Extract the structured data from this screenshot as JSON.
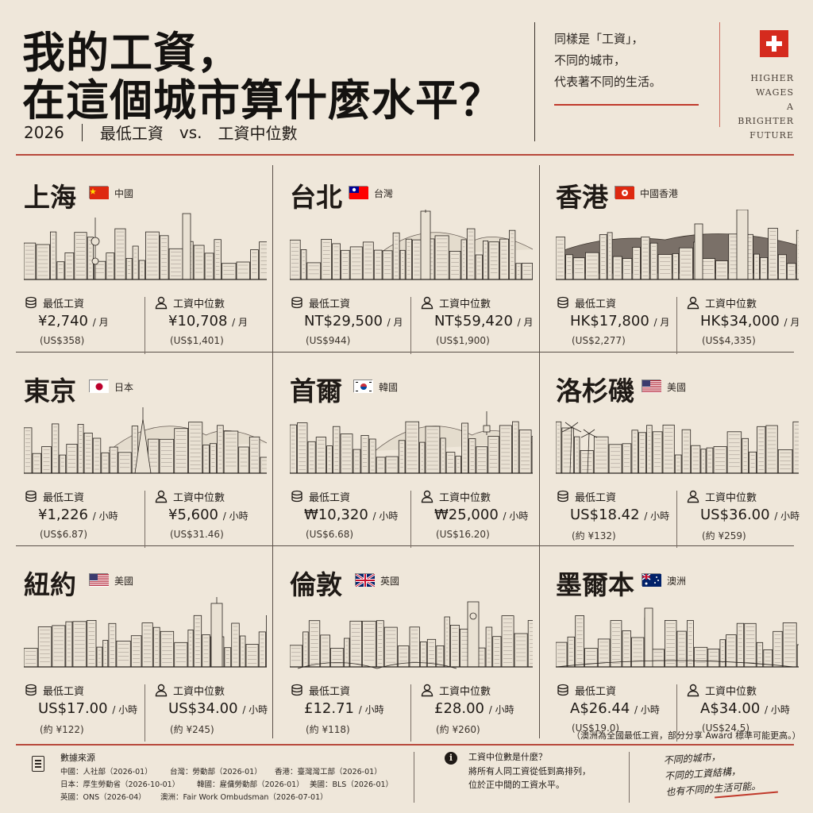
{
  "header": {
    "title_line1": "我的工資，",
    "title_line2": "在這個城市算什麼水平？",
    "year": "2026",
    "compare_left": "最低工資",
    "vs": "vs.",
    "compare_right": "工資中位數",
    "quote": [
      "同樣是「工資」，",
      "不同的城市，",
      "代表著不同的生活。"
    ],
    "brand": [
      "HIGHER",
      "WAGES",
      "A BRIGHTER",
      "FUTURE"
    ]
  },
  "cities": [
    {
      "name": "上海",
      "country": "中國",
      "flag": "cn",
      "min_label": "最低工資",
      "min_value": "¥2,740",
      "min_unit": "/ 月",
      "min_sub": "(US$358)",
      "med_label": "工資中位數",
      "med_value": "¥10,708",
      "med_unit": "/ 月",
      "med_sub": "(US$1,401)"
    },
    {
      "name": "台北",
      "country": "台灣",
      "flag": "tw",
      "min_label": "最低工資",
      "min_value": "NT$29,500",
      "min_unit": "/ 月",
      "min_sub": "(US$944)",
      "med_label": "工資中位數",
      "med_value": "NT$59,420",
      "med_unit": "/ 月",
      "med_sub": "(US$1,900)"
    },
    {
      "name": "香港",
      "country": "中國香港",
      "flag": "hk",
      "min_label": "最低工資",
      "min_value": "HK$17,800",
      "min_unit": "/ 月",
      "min_sub": "(US$2,277)",
      "med_label": "工資中位數",
      "med_value": "HK$34,000",
      "med_unit": "/ 月",
      "med_sub": "(US$4,335)"
    },
    {
      "name": "東京",
      "country": "日本",
      "flag": "jp",
      "min_label": "最低工資",
      "min_value": "¥1,226",
      "min_unit": "/ 小時",
      "min_sub": "(US$6.87)",
      "med_label": "工資中位數",
      "med_value": "¥5,600",
      "med_unit": "/ 小時",
      "med_sub": "(US$31.46)"
    },
    {
      "name": "首爾",
      "country": "韓國",
      "flag": "kr",
      "min_label": "最低工資",
      "min_value": "₩10,320",
      "min_unit": "/ 小時",
      "min_sub": "(US$6.68)",
      "med_label": "工資中位數",
      "med_value": "₩25,000",
      "med_unit": "/ 小時",
      "med_sub": "(US$16.20)"
    },
    {
      "name": "洛杉磯",
      "country": "美國",
      "flag": "us",
      "min_label": "最低工資",
      "min_value": "US$18.42",
      "min_unit": "/ 小時",
      "min_sub": "(約 ¥132)",
      "med_label": "工資中位數",
      "med_value": "US$36.00",
      "med_unit": "/ 小時",
      "med_sub": "(約 ¥259)"
    },
    {
      "name": "紐約",
      "country": "美國",
      "flag": "us",
      "min_label": "最低工資",
      "min_value": "US$17.00",
      "min_unit": "/ 小時",
      "min_sub": "(約 ¥122)",
      "med_label": "工資中位數",
      "med_value": "US$34.00",
      "med_unit": "/ 小時",
      "med_sub": "(約 ¥245)"
    },
    {
      "name": "倫敦",
      "country": "英國",
      "flag": "uk",
      "min_label": "最低工資",
      "min_value": "£12.71",
      "min_unit": "/ 小時",
      "min_sub": "(約 ¥118)",
      "med_label": "工資中位數",
      "med_value": "£28.00",
      "med_unit": "/ 小時",
      "med_sub": "(約 ¥260)"
    },
    {
      "name": "墨爾本",
      "country": "澳洲",
      "flag": "au",
      "min_label": "最低工資",
      "min_value": "A$26.44",
      "min_unit": "/ 小時",
      "min_sub": "(US$19.0)",
      "med_label": "工資中位數",
      "med_value": "A$34.00",
      "med_unit": "/ 小時",
      "med_sub": "(US$24.5)"
    }
  ],
  "aud_note": "（澳洲為全國最低工資，部分分享 Award 標準可能更高。）",
  "footer": {
    "sources_title": "數據來源",
    "sources": [
      "中國：人社部（2026-01）",
      "台灣：勞動部（2026-01）",
      "香港：臺灣灣工部（2026-01）",
      "日本：厚生勞動省（2026-10-01）",
      "韓國：雇傭勞動部（2026-01）",
      "美國：BLS（2026-01）",
      "英國：ONS（2026-04）",
      "澳洲：Fair Work Ombudsman（2026-07-01）"
    ],
    "info_title": "工資中位數是什麼？",
    "info_lines": [
      "將所有人同工資從低到高排列，",
      "位於正中間的工資水平。"
    ],
    "handwritten": [
      "不同的城市，",
      "不同的工資結構，",
      "也有不同的生活可能。"
    ]
  },
  "colors": {
    "background": "#efe7da",
    "accent_red": "#b8483b",
    "ink": "#1f1a16"
  }
}
